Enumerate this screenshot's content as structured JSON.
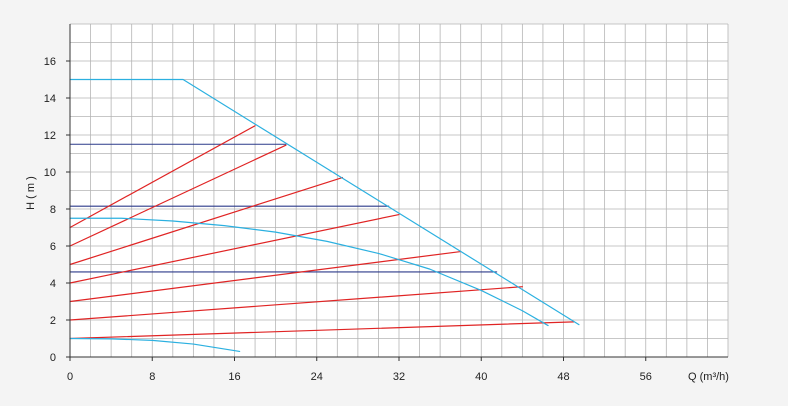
{
  "chart_data": {
    "type": "line",
    "title": "",
    "xlabel": "Q (m³/h)",
    "ylabel": "H ( m )",
    "xlim": [
      0,
      64
    ],
    "ylim": [
      0,
      18
    ],
    "x_ticks": [
      "0",
      "8",
      "16",
      "24",
      "32",
      "40",
      "48",
      "56"
    ],
    "y_ticks": [
      "0",
      "2",
      "4",
      "6",
      "8",
      "10",
      "12",
      "14",
      "16"
    ],
    "grid": true,
    "colors": {
      "background": "#ffffff",
      "grid": "#b5b5b5",
      "axis": "#333333",
      "max_curve": "#2bb0e0",
      "speed_curves": "#2bb0e0",
      "proportional_lines": "#e02424",
      "constant_lines": "#2c3a8a"
    },
    "series": [
      {
        "kind": "max-curve",
        "points": [
          [
            0,
            15.0
          ],
          [
            11,
            15.0
          ],
          [
            49.5,
            1.75
          ]
        ]
      },
      {
        "kind": "speed-curve",
        "points": [
          [
            0,
            7.5
          ],
          [
            5,
            7.5
          ],
          [
            10,
            7.35
          ],
          [
            15,
            7.1
          ],
          [
            20,
            6.75
          ],
          [
            25,
            6.25
          ],
          [
            30,
            5.6
          ],
          [
            35,
            4.75
          ],
          [
            40,
            3.6
          ],
          [
            44,
            2.5
          ],
          [
            46.5,
            1.7
          ]
        ]
      },
      {
        "kind": "speed-curve",
        "points": [
          [
            0,
            1.0
          ],
          [
            4,
            0.98
          ],
          [
            8,
            0.9
          ],
          [
            12,
            0.7
          ],
          [
            16.5,
            0.3
          ]
        ]
      },
      {
        "kind": "proportional",
        "points": [
          [
            0,
            7.0
          ],
          [
            18,
            12.5
          ]
        ]
      },
      {
        "kind": "proportional",
        "points": [
          [
            0,
            6.0
          ],
          [
            21,
            11.45
          ]
        ]
      },
      {
        "kind": "proportional",
        "points": [
          [
            0,
            5.0
          ],
          [
            26.5,
            9.7
          ]
        ]
      },
      {
        "kind": "proportional",
        "points": [
          [
            0,
            4.0
          ],
          [
            32,
            7.7
          ]
        ]
      },
      {
        "kind": "proportional",
        "points": [
          [
            0,
            3.0
          ],
          [
            38,
            5.7
          ]
        ]
      },
      {
        "kind": "proportional",
        "points": [
          [
            0,
            2.0
          ],
          [
            44,
            3.8
          ]
        ]
      },
      {
        "kind": "proportional",
        "points": [
          [
            0,
            1.0
          ],
          [
            49,
            1.9
          ]
        ]
      },
      {
        "kind": "constant",
        "points": [
          [
            0,
            11.5
          ],
          [
            21,
            11.5
          ]
        ]
      },
      {
        "kind": "constant",
        "points": [
          [
            0,
            8.15
          ],
          [
            31,
            8.15
          ]
        ]
      },
      {
        "kind": "constant",
        "points": [
          [
            0,
            4.6
          ],
          [
            41.5,
            4.6
          ]
        ]
      }
    ]
  }
}
